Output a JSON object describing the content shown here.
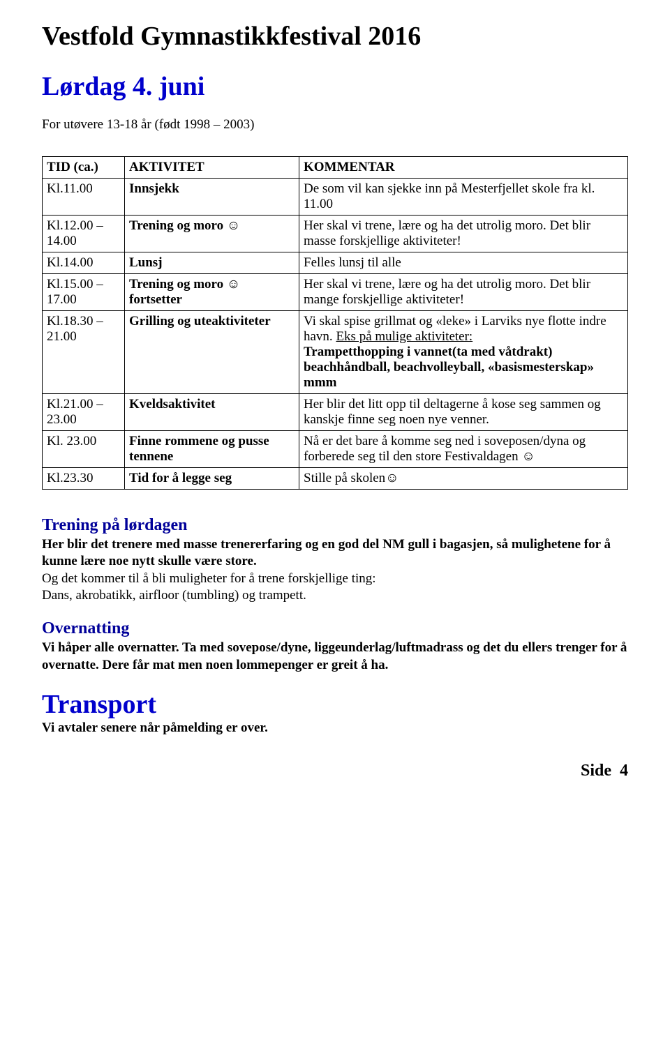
{
  "title": "Vestfold Gymnastikkfestival 2016",
  "subtitle": "Lørdag 4. juni",
  "intro": "For utøvere 13-18 år (født 1998 – 2003)",
  "colors": {
    "title": "#000000",
    "subtitle": "#0000cc",
    "section_blue": "#000099",
    "text": "#000000",
    "border": "#000000",
    "background": "#ffffff"
  },
  "table": {
    "headers": {
      "time": "TID (ca.)",
      "activity": "AKTIVITET",
      "comment": "KOMMENTAR"
    },
    "rows": [
      {
        "time": "Kl.11.00",
        "activity": "Innsjekk",
        "activity_bold": true,
        "comment": "De som vil kan sjekke inn på Mesterfjellet skole fra kl. 11.00"
      },
      {
        "time": "Kl.12.00 – 14.00",
        "activity": "Trening og moro ☺",
        "activity_bold": true,
        "comment": "Her skal vi trene, lære og ha det utrolig moro. Det blir masse forskjellige aktiviteter!"
      },
      {
        "time": "Kl.14.00",
        "activity": "Lunsj",
        "activity_bold": true,
        "comment": "Felles lunsj til alle"
      },
      {
        "time": "Kl.15.00 – 17.00",
        "activity": "Trening og moro ☺ fortsetter",
        "activity_bold": true,
        "comment": "Her skal vi trene, lære og ha det utrolig moro. Det blir mange forskjellige aktiviteter!"
      },
      {
        "time": "Kl.18.30 – 21.00",
        "activity": "Grilling og uteaktiviteter",
        "activity_bold": true,
        "comment_pre": "Vi skal spise grillmat og «leke» i Larviks nye flotte indre havn. ",
        "comment_und": "Eks på mulige aktiviteter:",
        "comment_bold": "Trampetthopping i vannet(ta med våtdrakt) beachhåndball, beachvolleyball, «basismesterskap» mmm"
      },
      {
        "time": "Kl.21.00 – 23.00",
        "activity": "Kveldsaktivitet",
        "activity_bold": true,
        "comment": "Her blir det litt opp til deltagerne å kose seg sammen og kanskje finne seg noen nye venner."
      },
      {
        "time": "Kl. 23.00",
        "activity": "Finne rommene og pusse tennene",
        "activity_bold": true,
        "comment": "Nå er det bare å komme seg ned i soveposen/dyna og forberede seg til den store Festivaldagen ☺"
      },
      {
        "time": "Kl.23.30",
        "activity": "Tid for å legge seg",
        "activity_bold": true,
        "comment": "Stille på skolen☺"
      }
    ]
  },
  "sections": {
    "training": {
      "heading": "Trening på lørdagen",
      "body_bold": "Her blir det trenere med masse trenererfaring og en god del NM gull i bagasjen, så mulighetene for å kunne lære noe nytt skulle være store.",
      "body_rest": "Og det kommer til å bli muligheter for å trene forskjellige ting:\n Dans, akrobatikk, airfloor (tumbling) og trampett."
    },
    "overnight": {
      "heading": "Overnatting",
      "body": "Vi håper alle overnatter. Ta med sovepose/dyne, liggeunderlag/luftmadrass og det du ellers trenger for å overnatte. Dere får mat men noen lommepenger er greit å ha."
    },
    "transport": {
      "heading": "Transport",
      "body": "Vi avtaler senere når påmelding er over."
    }
  },
  "footer": {
    "label": "Side",
    "page": "4"
  }
}
